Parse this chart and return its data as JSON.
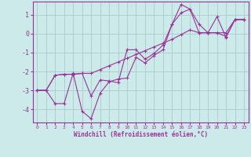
{
  "background_color": "#cdeaea",
  "grid_color": "#b0d0d0",
  "line_color": "#993399",
  "xlabel": "Windchill (Refroidissement éolien,°C)",
  "xlim": [
    -0.5,
    23.5
  ],
  "ylim": [
    -4.7,
    1.7
  ],
  "yticks": [
    1,
    0,
    -1,
    -2,
    -3,
    -4
  ],
  "xticks": [
    0,
    1,
    2,
    3,
    4,
    5,
    6,
    7,
    8,
    9,
    10,
    11,
    12,
    13,
    14,
    15,
    16,
    17,
    18,
    19,
    20,
    21,
    22,
    23
  ],
  "series": [
    {
      "x": [
        0,
        1,
        2,
        3,
        4,
        5,
        6,
        7,
        8,
        9,
        10,
        11,
        12,
        13,
        14,
        15,
        16,
        17,
        18,
        19,
        20,
        21,
        22,
        23
      ],
      "y": [
        -3.0,
        -3.0,
        -2.2,
        -2.15,
        -2.15,
        -2.1,
        -2.1,
        -1.9,
        -1.7,
        -1.5,
        -1.3,
        -1.1,
        -0.9,
        -0.7,
        -0.5,
        -0.3,
        -0.05,
        0.2,
        0.05,
        0.05,
        0.05,
        0.05,
        0.75,
        0.75
      ]
    },
    {
      "x": [
        0,
        1,
        2,
        3,
        4,
        5,
        6,
        7,
        8,
        9,
        10,
        11,
        12,
        13,
        14,
        15,
        16,
        17,
        18,
        19,
        20,
        21,
        22,
        23
      ],
      "y": [
        -3.0,
        -3.0,
        -3.7,
        -3.7,
        -2.1,
        -4.1,
        -4.5,
        -3.15,
        -2.55,
        -2.4,
        -2.35,
        -1.25,
        -1.55,
        -1.15,
        -0.85,
        0.5,
        1.55,
        1.3,
        0.5,
        0.05,
        0.9,
        -0.2,
        0.75,
        0.75
      ]
    },
    {
      "x": [
        0,
        1,
        2,
        3,
        4,
        5,
        6,
        7,
        8,
        9,
        10,
        11,
        12,
        13,
        14,
        15,
        16,
        17,
        18,
        19,
        20,
        21,
        22,
        23
      ],
      "y": [
        -3.0,
        -3.0,
        -2.2,
        -2.15,
        -2.15,
        -2.1,
        -3.3,
        -2.45,
        -2.5,
        -2.6,
        -0.85,
        -0.85,
        -1.35,
        -1.05,
        -0.6,
        0.5,
        1.1,
        1.3,
        0.05,
        0.05,
        0.05,
        -0.15,
        0.75,
        0.75
      ]
    }
  ]
}
